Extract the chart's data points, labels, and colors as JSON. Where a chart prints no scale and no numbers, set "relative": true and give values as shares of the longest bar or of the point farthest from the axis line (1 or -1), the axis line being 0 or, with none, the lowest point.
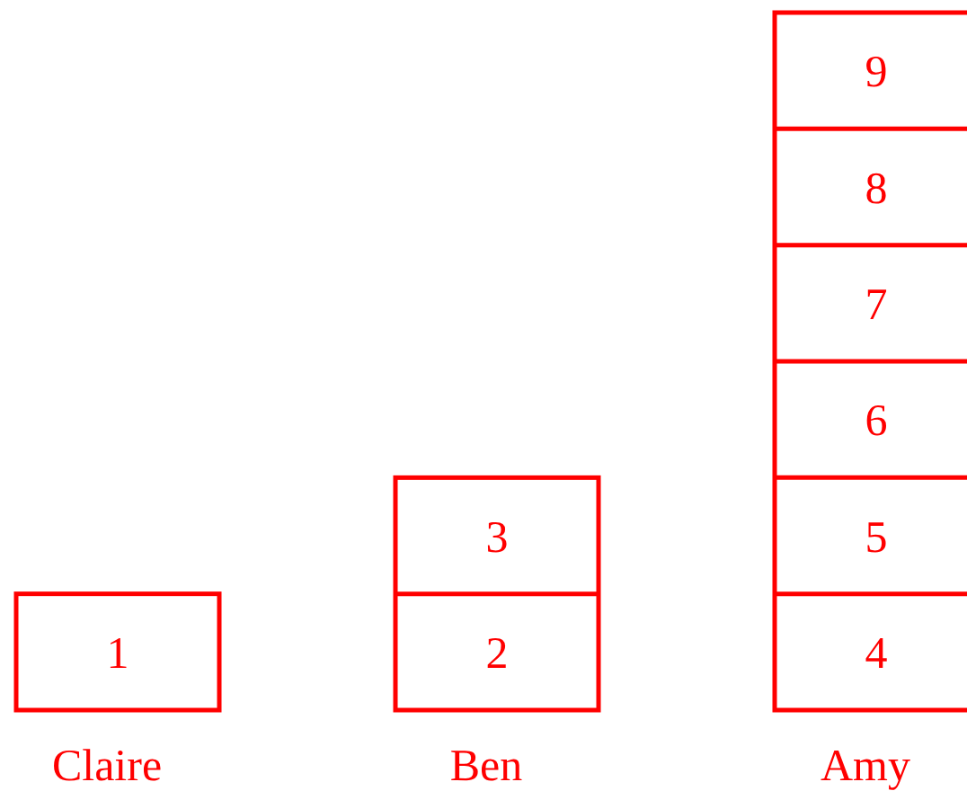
{
  "chart_data": {
    "type": "bar",
    "relative": true,
    "categories": [
      "Claire",
      "Ben",
      "Amy"
    ],
    "series": [
      {
        "color": "#ff0000",
        "values": [
          0.1667,
          0.3333,
          1
        ]
      }
    ],
    "annotations": [
      "1",
      "2",
      "3",
      "4",
      "5",
      "6",
      "7",
      "8",
      "9"
    ]
  }
}
